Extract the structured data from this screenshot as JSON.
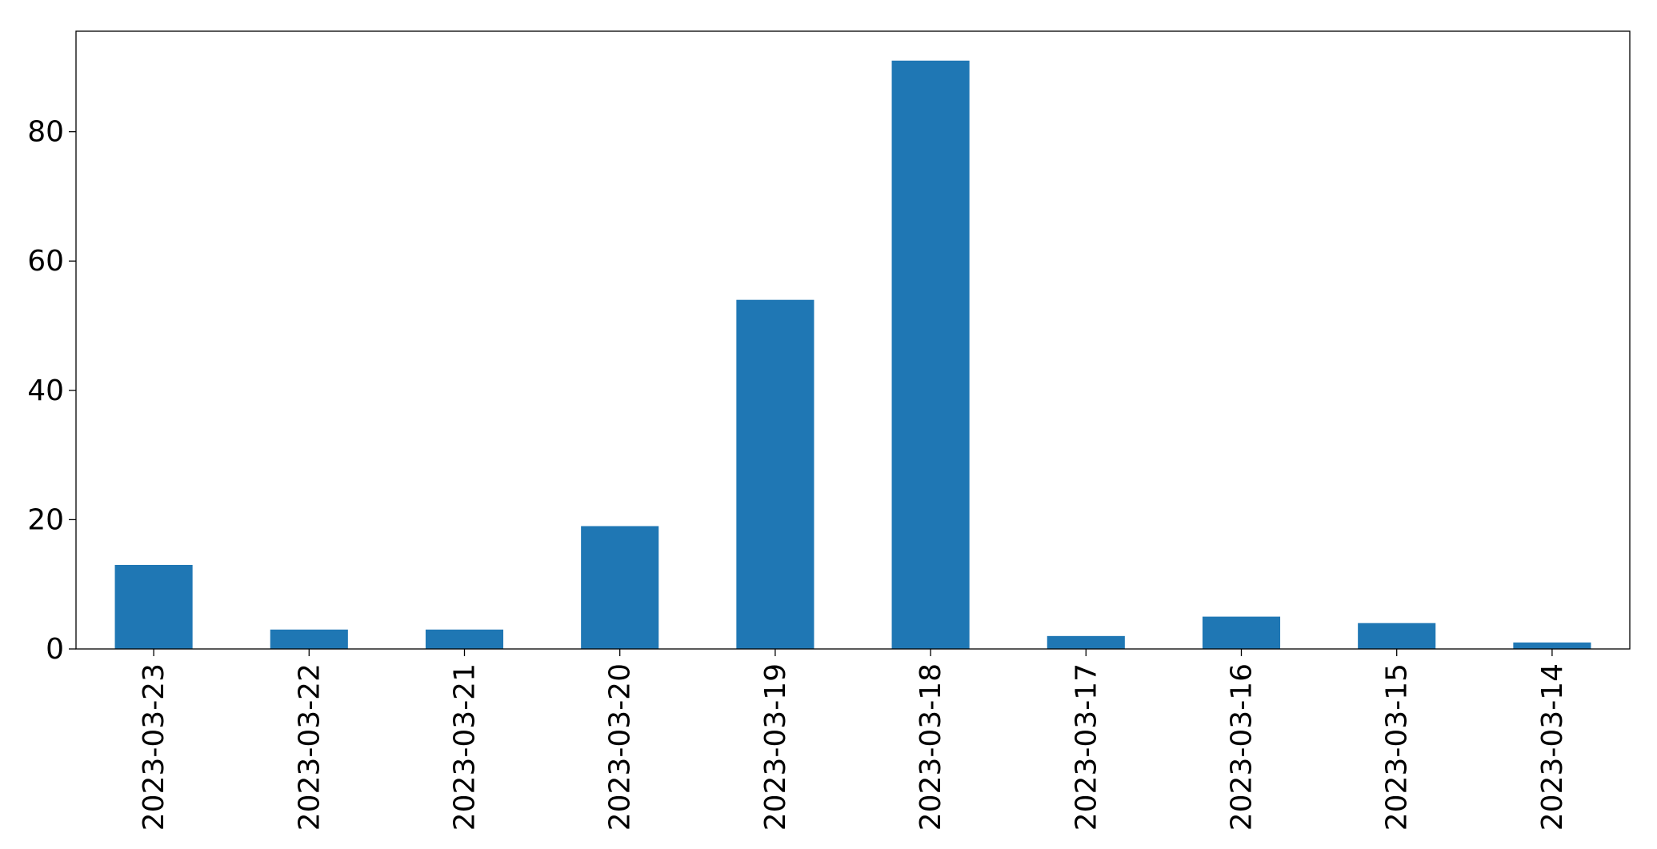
{
  "chart_data": {
    "type": "bar",
    "categories": [
      "2023-03-23",
      "2023-03-22",
      "2023-03-21",
      "2023-03-20",
      "2023-03-19",
      "2023-03-18",
      "2023-03-17",
      "2023-03-16",
      "2023-03-15",
      "2023-03-14"
    ],
    "values": [
      13,
      3,
      3,
      19,
      54,
      91,
      2,
      5,
      4,
      1
    ],
    "title": "",
    "xlabel": "",
    "ylabel": "",
    "ylim": [
      0,
      95.55
    ],
    "yticks": [
      0,
      20,
      40,
      60,
      80
    ],
    "grid": false,
    "legend": "none",
    "bar_color": "#1f77b4"
  }
}
